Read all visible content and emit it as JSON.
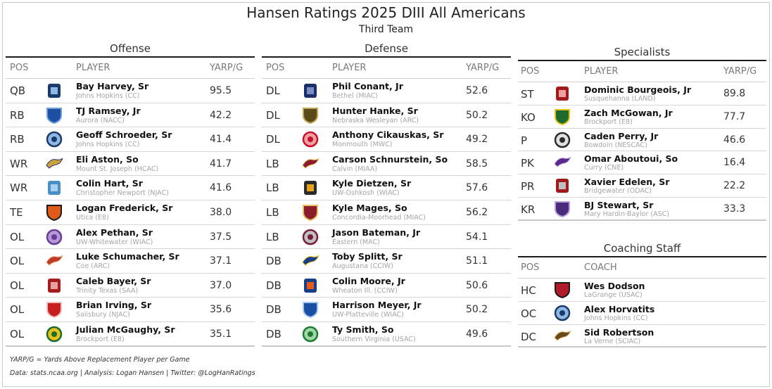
{
  "title": "Hansen Ratings 2025 DIII All Americans",
  "subtitle": "Third Team",
  "chart_data": {
    "type": "table",
    "offense": {
      "title": "Offense",
      "columns": [
        "POS",
        "PLAYER",
        "YARP/G"
      ],
      "rows": [
        {
          "pos": "QB",
          "name": "Bay Harvey, Sr",
          "school": "Johns Hopkins (CC)",
          "yarp": "95.5",
          "logo": "johns-hopkins-logo",
          "c1": "#1b3a6b",
          "c2": "#8fb8e0"
        },
        {
          "pos": "RB",
          "name": "TJ Ramsey, Jr",
          "school": "Aurora (NACC)",
          "yarp": "42.2",
          "logo": "aurora-logo",
          "c1": "#1e4fa3",
          "c2": "#6ca0dc"
        },
        {
          "pos": "RB",
          "name": "Geoff Schroeder, Sr",
          "school": "Johns Hopkins (CC)",
          "yarp": "41.4",
          "logo": "johns-hopkins-logo",
          "c1": "#1b3a6b",
          "c2": "#8fb8e0"
        },
        {
          "pos": "WR",
          "name": "Eli Aston, So",
          "school": "Mount St. Joseph (HCAC)",
          "yarp": "41.7",
          "logo": "mount-st-joseph-logo",
          "c1": "#c8a43a",
          "c2": "#2b2b6b"
        },
        {
          "pos": "WR",
          "name": "Colin Hart, Sr",
          "school": "Christopher Newport (NJAC)",
          "yarp": "41.6",
          "logo": "christopher-newport-logo",
          "c1": "#4a90c8",
          "c2": "#a9d0ef"
        },
        {
          "pos": "TE",
          "name": "Logan Frederick, Sr",
          "school": "Utica (E8)",
          "yarp": "38.0",
          "logo": "utica-logo",
          "c1": "#e05a1a",
          "c2": "#1a1a1a"
        },
        {
          "pos": "OL",
          "name": "Alex Pethan, Sr",
          "school": "UW-Whitewater (WIAC)",
          "yarp": "37.5",
          "logo": "uw-whitewater-logo",
          "c1": "#6a3a9a",
          "c2": "#b69ad6"
        },
        {
          "pos": "OL",
          "name": "Luke Schumacher, Sr",
          "school": "Coe (ARC)",
          "yarp": "37.1",
          "logo": "coe-logo",
          "c1": "#c0392b",
          "c2": "#e8b27a"
        },
        {
          "pos": "OL",
          "name": "Caleb Bayer, Sr",
          "school": "Trinity Texas (SAA)",
          "yarp": "37.0",
          "logo": "trinity-texas-logo",
          "c1": "#a61c1c",
          "c2": "#e8a0a0"
        },
        {
          "pos": "OL",
          "name": "Brian Irving, Sr",
          "school": "Salisbury (NJAC)",
          "yarp": "35.6",
          "logo": "salisbury-logo",
          "c1": "#c81e1e",
          "c2": "#f0c0c0"
        },
        {
          "pos": "OL",
          "name": "Julian McGaughy, Sr",
          "school": "Brockport (E8)",
          "yarp": "35.1",
          "logo": "brockport-logo",
          "c1": "#1e6b2e",
          "c2": "#e6c21a"
        }
      ]
    },
    "defense": {
      "title": "Defense",
      "columns": [
        "POS",
        "PLAYER",
        "YARP/G"
      ],
      "rows": [
        {
          "pos": "DL",
          "name": "Phil Conant, Jr",
          "school": "Bethel (MIAC)",
          "yarp": "52.6",
          "logo": "bethel-logo",
          "c1": "#1a2f6b",
          "c2": "#7a8fc0"
        },
        {
          "pos": "DL",
          "name": "Hunter Hanke, Sr",
          "school": "Nebraska Wesleyan (ARC)",
          "yarp": "50.2",
          "logo": "nebraska-wesleyan-logo",
          "c1": "#5a4a1a",
          "c2": "#c0a850"
        },
        {
          "pos": "DL",
          "name": "Anthony Cikauskas, Sr",
          "school": "Monmouth (MWC)",
          "yarp": "49.2",
          "logo": "monmouth-logo",
          "c1": "#c8102e",
          "c2": "#f0a0a0"
        },
        {
          "pos": "LB",
          "name": "Carson Schnurstein, So",
          "school": "Calvin (MIAA)",
          "yarp": "58.5",
          "logo": "calvin-logo",
          "c1": "#8a1c2b",
          "c2": "#e6c060"
        },
        {
          "pos": "LB",
          "name": "Kyle Dietzen, Sr",
          "school": "UW-Oshkosh (WIAC)",
          "yarp": "57.6",
          "logo": "uw-oshkosh-logo",
          "c1": "#2b2b2b",
          "c2": "#e6a21a"
        },
        {
          "pos": "LB",
          "name": "Kyle Mages, So",
          "school": "Concordia-Moorhead (MIAC)",
          "yarp": "56.2",
          "logo": "concordia-moorhead-logo",
          "c1": "#8a1c2b",
          "c2": "#e6c060"
        },
        {
          "pos": "LB",
          "name": "Jason Bateman, Jr",
          "school": "Eastern (MAC)",
          "yarp": "54.1",
          "logo": "eastern-logo",
          "c1": "#7a1c3b",
          "c2": "#c0c0c0"
        },
        {
          "pos": "DB",
          "name": "Toby Splitt, Sr",
          "school": "Augustana (CCIW)",
          "yarp": "51.1",
          "logo": "augustana-logo",
          "c1": "#1a3f8a",
          "c2": "#e6c21a"
        },
        {
          "pos": "DB",
          "name": "Colin Moore, Jr",
          "school": "Wheaton Ill. (CCIW)",
          "yarp": "50.6",
          "logo": "wheaton-logo",
          "c1": "#1a3f8a",
          "c2": "#e65a1a"
        },
        {
          "pos": "DB",
          "name": "Harrison Meyer, Jr",
          "school": "UW-Platteville (WIAC)",
          "yarp": "50.2",
          "logo": "uw-platteville-logo",
          "c1": "#1a4fa3",
          "c2": "#a9c8ef"
        },
        {
          "pos": "DB",
          "name": "Ty Smith, So",
          "school": "Southern Virginia (USAC)",
          "yarp": "49.6",
          "logo": "southern-virginia-logo",
          "c1": "#1e7a2e",
          "c2": "#a0d6a8"
        }
      ]
    },
    "specialists": {
      "title": "Specialists",
      "columns": [
        "POS",
        "PLAYER",
        "YARP/G"
      ],
      "rows": [
        {
          "pos": "ST",
          "name": "Dominic Bourgeois, Jr",
          "school": "Susquehanna (LAND)",
          "yarp": "89.8",
          "logo": "susquehanna-logo",
          "c1": "#a01c1c",
          "c2": "#f0a0a0"
        },
        {
          "pos": "KO",
          "name": "Zach McGowan, Jr",
          "school": "Brockport (E8)",
          "yarp": "77.7",
          "logo": "brockport-logo",
          "c1": "#1e6b2e",
          "c2": "#e6c21a"
        },
        {
          "pos": "P",
          "name": "Caden Perry, Jr",
          "school": "Bowdoin (NESCAC)",
          "yarp": "46.6",
          "logo": "bowdoin-logo",
          "c1": "#2b2b2b",
          "c2": "#e0e0e0"
        },
        {
          "pos": "PK",
          "name": "Omar Aboutoui, So",
          "school": "Curry (CNE)",
          "yarp": "16.4",
          "logo": "curry-logo",
          "c1": "#5a2a8a",
          "c2": "#c8a8e8"
        },
        {
          "pos": "PR",
          "name": "Xavier Edelen, Sr",
          "school": "Bridgewater (ODAC)",
          "yarp": "22.2",
          "logo": "bridgewater-logo",
          "c1": "#a01c1c",
          "c2": "#c0c0c0"
        },
        {
          "pos": "KR",
          "name": "BJ Stewart, Sr",
          "school": "Mary Hardin-Baylor (ASC)",
          "yarp": "33.3",
          "logo": "mary-hardin-baylor-logo",
          "c1": "#4a2a7a",
          "c2": "#b8a0d8"
        }
      ]
    },
    "coaching": {
      "title": "Coaching Staff",
      "columns": [
        "POS",
        "COACH"
      ],
      "rows": [
        {
          "pos": "HC",
          "name": "Wes Dodson",
          "school": "LaGrange (USAC)",
          "logo": "lagrange-logo",
          "c1": "#b01c2b",
          "c2": "#1a1a1a"
        },
        {
          "pos": "OC",
          "name": "Alex Horvatits",
          "school": "Johns Hopkins (CC)",
          "logo": "johns-hopkins-logo",
          "c1": "#1b3a6b",
          "c2": "#8fb8e0"
        },
        {
          "pos": "DC",
          "name": "Sid Robertson",
          "school": "La Verne (SCIAC)",
          "logo": "la-verne-logo",
          "c1": "#6b4a1a",
          "c2": "#e0c080"
        }
      ]
    }
  },
  "footnote": "YARP/G = Yards Above Replacement Player per Game",
  "footer": "Data: stats.ncaa.org | Analysis: Logan Hansen | Twitter: @LogHanRatings"
}
